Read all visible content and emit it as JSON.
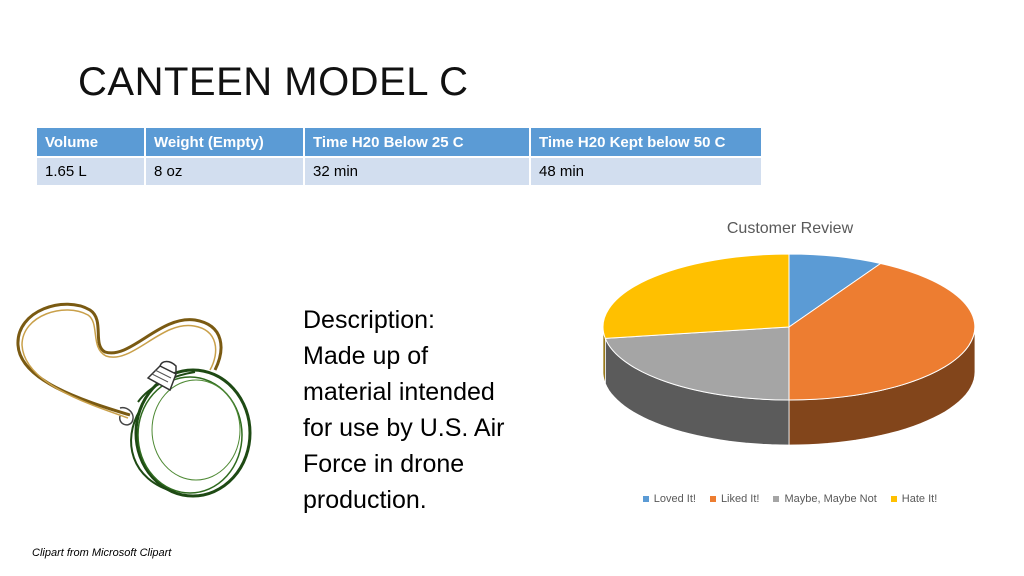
{
  "slide": {
    "title": "CANTEEN MODEL C",
    "credit": "Clipart from Microsoft Clipart"
  },
  "specs_table": {
    "headers": [
      "Volume",
      "Weight (Empty)",
      "Time H20 Below 25 C",
      "Time H20 Kept below 50 C"
    ],
    "rows": [
      [
        "1.65 L",
        "8 oz",
        " 32 min",
        "48 min"
      ]
    ]
  },
  "description": {
    "lines": [
      "Description:",
      "Made up of",
      "material intended",
      "for use by U.S. Air",
      "Force in drone",
      "production."
    ]
  },
  "icons": {
    "illustration": "canteen-icon"
  },
  "chart_data": {
    "type": "pie",
    "title": "Customer Review",
    "categories": [
      "Loved It!",
      "Liked It!",
      "Maybe, Maybe Not",
      "Hate It!"
    ],
    "values": [
      8.2,
      41.8,
      22.5,
      27.5
    ],
    "colors": [
      "#5b9bd5",
      "#ed7d31",
      "#a5a5a5",
      "#ffc000"
    ],
    "legend_position": "bottom",
    "style": "3d"
  }
}
